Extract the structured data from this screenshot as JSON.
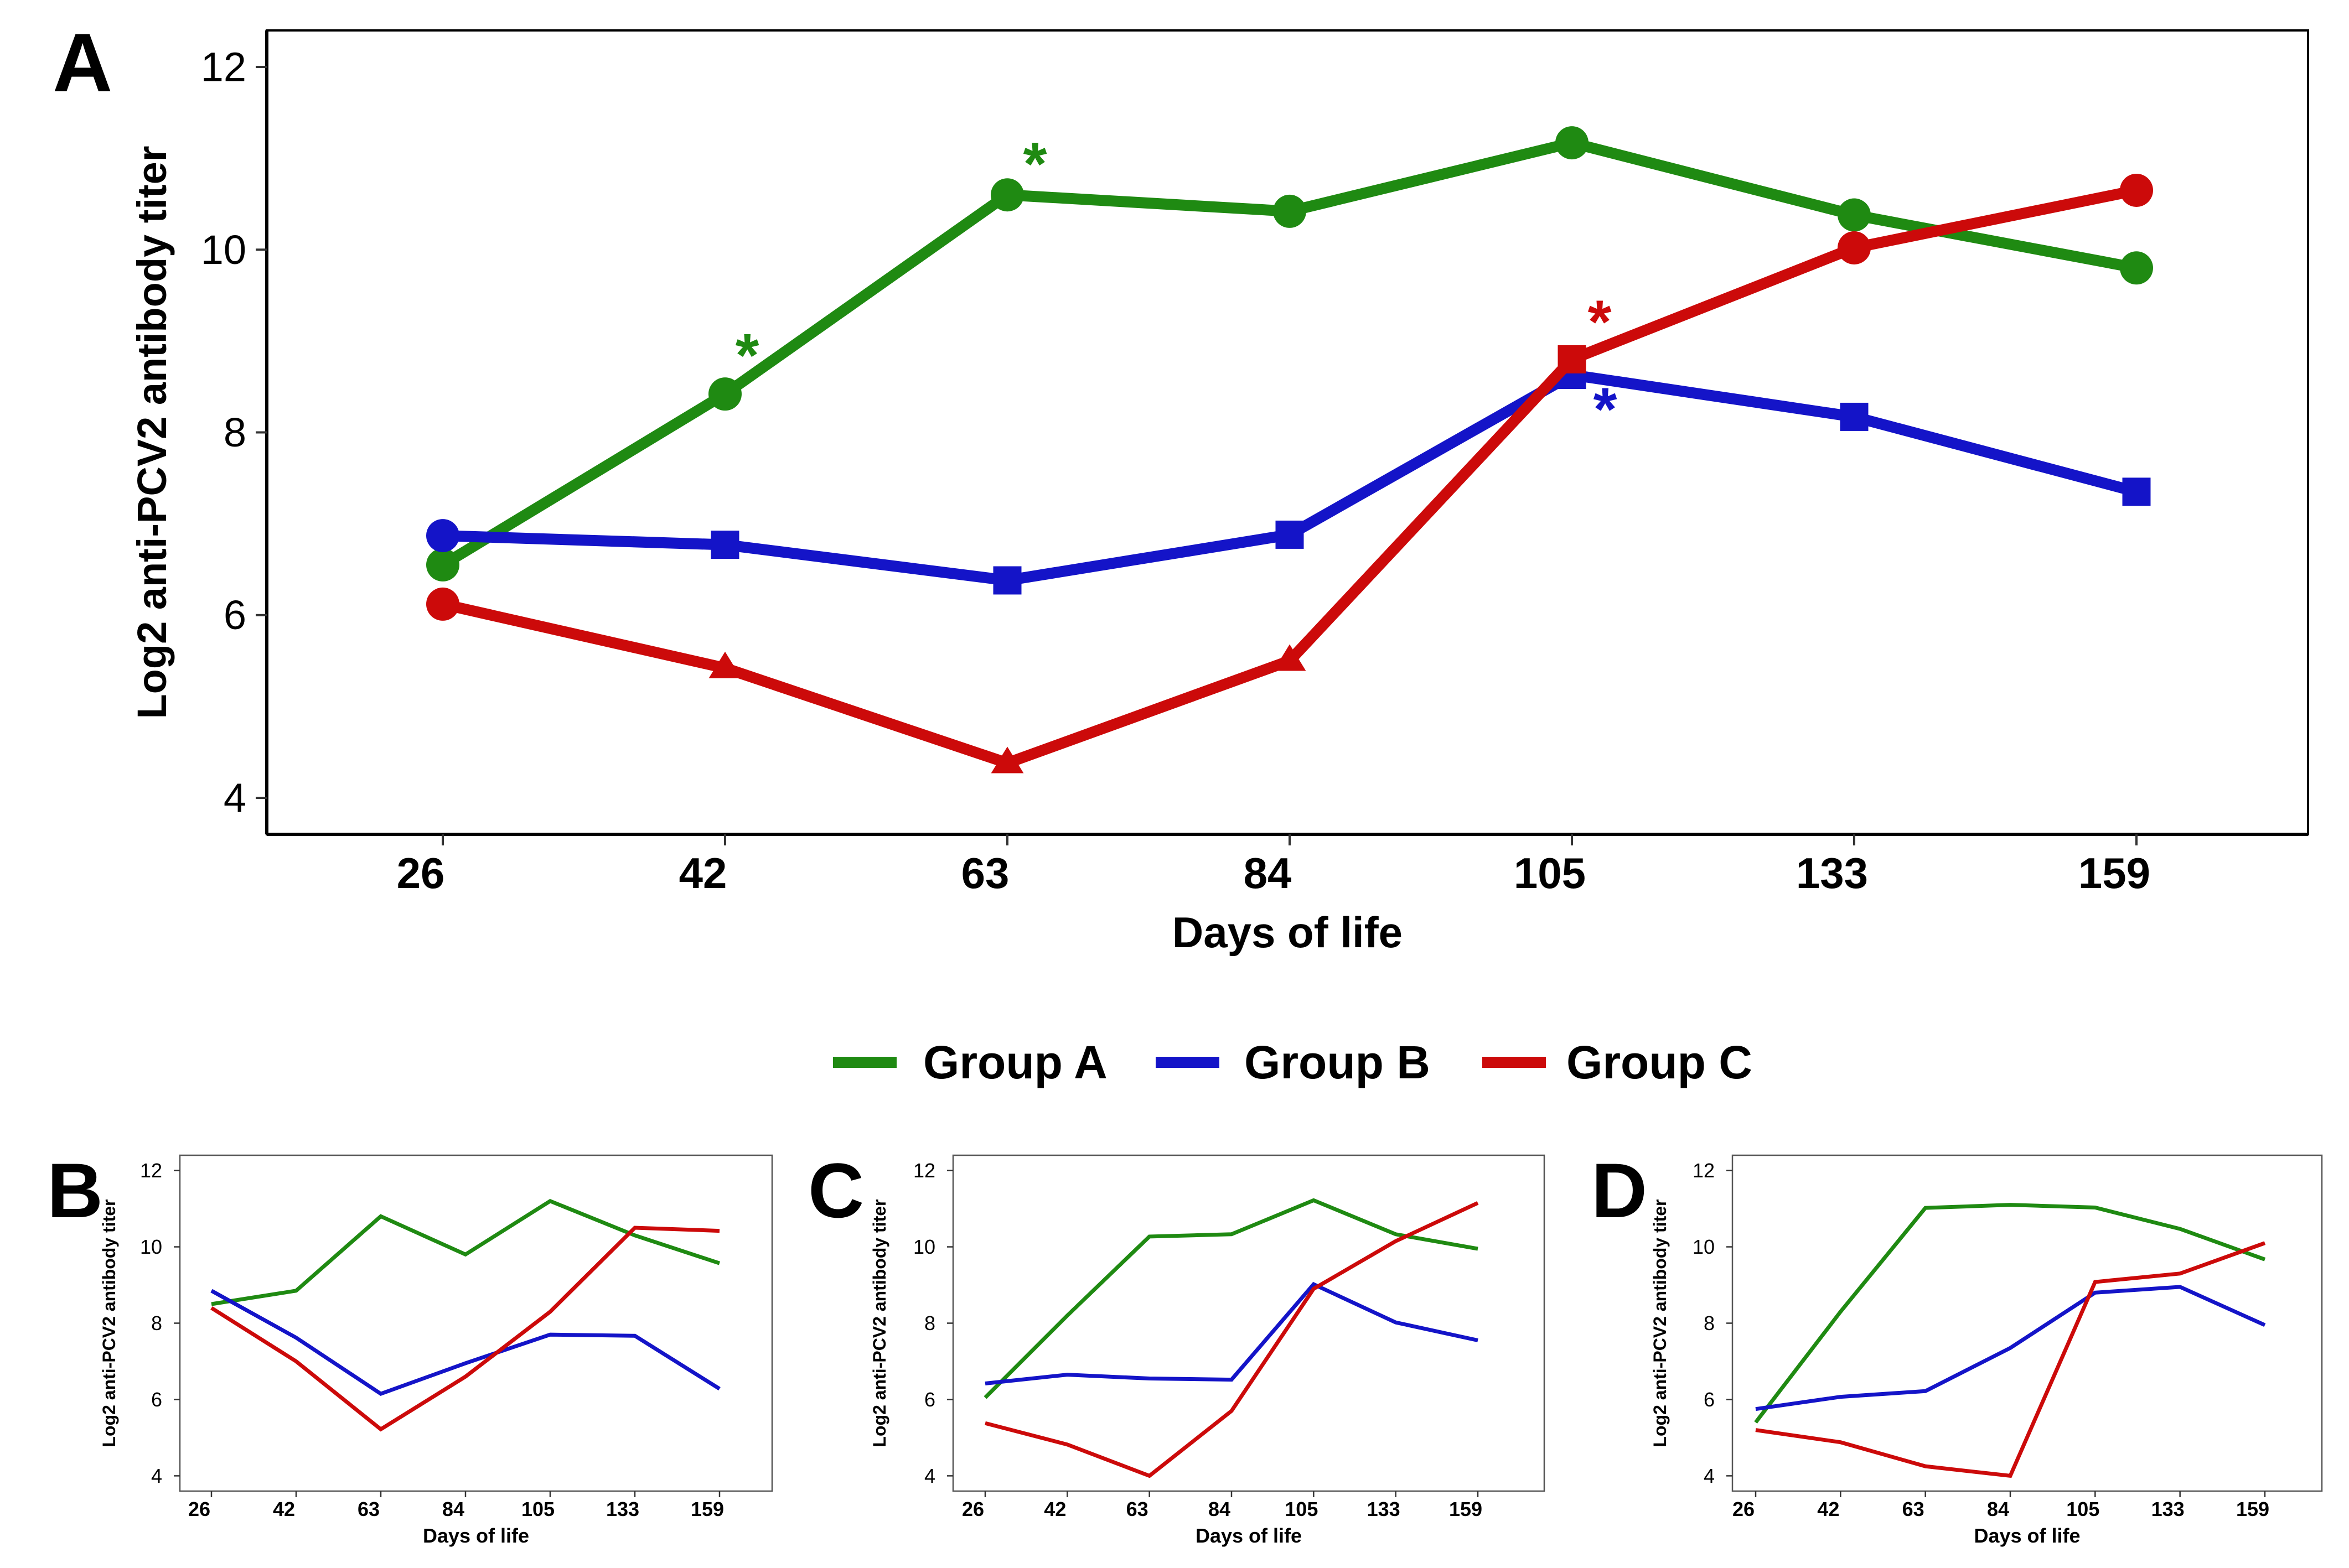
{
  "figure": {
    "legend": {
      "items": [
        {
          "label": "Group A",
          "color": "#1f8a12"
        },
        {
          "label": "Group B",
          "color": "#1414c8"
        },
        {
          "label": "Group C",
          "color": "#cc0a0a"
        }
      ]
    }
  },
  "chart_data": [
    {
      "panel": "A",
      "type": "line",
      "xlabel": "Days of life",
      "ylabel": "Log2 anti-PCV2 antibody titer",
      "categories": [
        "26",
        "42",
        "63",
        "84",
        "105",
        "133",
        "159"
      ],
      "yticks": [
        4,
        6,
        8,
        10,
        12
      ],
      "ylim": [
        3.6,
        12.4
      ],
      "series": [
        {
          "name": "Group A",
          "color": "#1f8a12",
          "values": [
            6.55,
            8.42,
            10.6,
            10.42,
            11.17,
            10.38,
            9.8
          ],
          "markers": [
            "circle",
            "circle",
            "circle",
            "circle",
            "circle",
            "circle",
            "circle"
          ],
          "significance": [
            false,
            true,
            true,
            false,
            false,
            false,
            false
          ]
        },
        {
          "name": "Group B",
          "color": "#1414c8",
          "values": [
            6.87,
            6.77,
            6.38,
            6.88,
            8.63,
            8.17,
            7.35
          ],
          "markers": [
            "circle",
            "square",
            "square",
            "square",
            "square",
            "square",
            "square"
          ],
          "significance": [
            false,
            false,
            false,
            false,
            true,
            false,
            false
          ]
        },
        {
          "name": "Group C",
          "color": "#cc0a0a",
          "values": [
            6.12,
            5.42,
            4.38,
            5.5,
            8.8,
            10.02,
            10.65
          ],
          "markers": [
            "circle",
            "triangle",
            "triangle",
            "triangle",
            "square",
            "circle",
            "circle"
          ],
          "significance": [
            false,
            false,
            false,
            false,
            true,
            false,
            false
          ]
        }
      ],
      "significance_label": "*"
    },
    {
      "panel": "B",
      "type": "line",
      "xlabel": "Days of life",
      "ylabel": "Log2 anti-PCV2 antibody titer",
      "categories": [
        "26",
        "42",
        "63",
        "84",
        "105",
        "133",
        "159"
      ],
      "yticks": [
        4,
        6,
        8,
        10,
        12
      ],
      "ylim": [
        3.6,
        12.4
      ],
      "series": [
        {
          "name": "Group A",
          "color": "#1f8a12",
          "values": [
            8.5,
            8.85,
            10.8,
            9.8,
            11.2,
            10.3,
            9.57
          ]
        },
        {
          "name": "Group B",
          "color": "#1414c8",
          "values": [
            8.85,
            7.62,
            6.15,
            6.95,
            7.7,
            7.67,
            6.28
          ]
        },
        {
          "name": "Group C",
          "color": "#cc0a0a",
          "values": [
            8.4,
            7.0,
            5.22,
            6.6,
            8.3,
            10.5,
            10.42
          ]
        }
      ]
    },
    {
      "panel": "C",
      "type": "line",
      "xlabel": "Days of life",
      "ylabel": "Log2 anti-PCV2 antibody titer",
      "categories": [
        "26",
        "42",
        "63",
        "84",
        "105",
        "133",
        "159"
      ],
      "yticks": [
        4,
        6,
        8,
        10,
        12
      ],
      "ylim": [
        3.6,
        12.4
      ],
      "series": [
        {
          "name": "Group A",
          "color": "#1f8a12",
          "values": [
            6.05,
            8.2,
            10.27,
            10.33,
            11.22,
            10.33,
            9.95
          ]
        },
        {
          "name": "Group B",
          "color": "#1414c8",
          "values": [
            6.42,
            6.65,
            6.55,
            6.52,
            9.02,
            8.02,
            7.55
          ]
        },
        {
          "name": "Group C",
          "color": "#cc0a0a",
          "values": [
            5.38,
            4.82,
            4.0,
            5.7,
            8.9,
            10.15,
            11.15
          ]
        }
      ]
    },
    {
      "panel": "D",
      "type": "line",
      "xlabel": "Days of life",
      "ylabel": "Log2 anti-PCV2 antibody titer",
      "categories": [
        "26",
        "42",
        "63",
        "84",
        "105",
        "133",
        "159"
      ],
      "yticks": [
        4,
        6,
        8,
        10,
        12
      ],
      "ylim": [
        3.6,
        12.4
      ],
      "series": [
        {
          "name": "Group A",
          "color": "#1f8a12",
          "values": [
            5.4,
            8.3,
            11.02,
            11.1,
            11.03,
            10.47,
            9.67
          ]
        },
        {
          "name": "Group B",
          "color": "#1414c8",
          "values": [
            5.75,
            6.07,
            6.22,
            7.35,
            8.8,
            8.95,
            7.95
          ]
        },
        {
          "name": "Group C",
          "color": "#cc0a0a",
          "values": [
            5.2,
            4.88,
            4.25,
            4.0,
            9.08,
            9.3,
            10.1
          ]
        }
      ]
    }
  ]
}
